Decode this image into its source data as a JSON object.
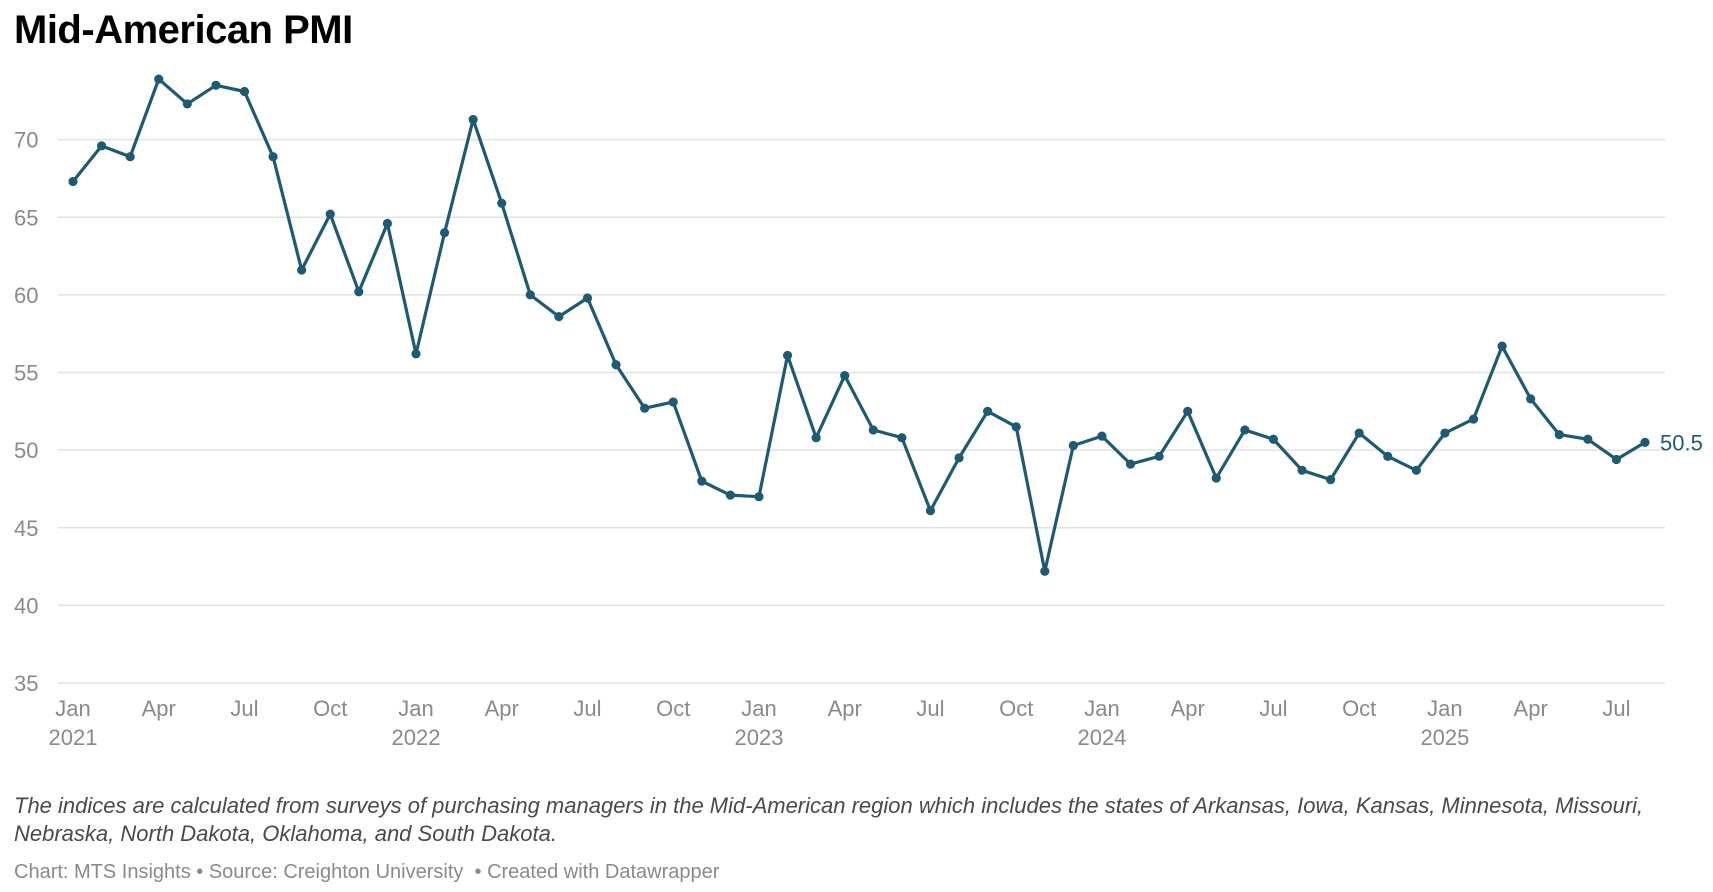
{
  "title": "Mid-American PMI",
  "notes": "The indices are calculated from surveys of purchasing managers in the Mid-American region which includes the states of Arkansas, Iowa, Kansas, Minnesota, Missouri, Nebraska, North Dakota, Oklahoma, and South Dakota.",
  "footer": {
    "chart_credit": "Chart: MTS Insights",
    "separator": " • ",
    "source": "Source: Creighton University",
    "separator2": "  • ",
    "created": "Created with Datawrapper"
  },
  "colors": {
    "line": "#1f5a73",
    "grid": "#e2e2e2",
    "tick_text": "#8a8a8a"
  },
  "chart_data": {
    "type": "line",
    "title": "Mid-American PMI",
    "xlabel": "",
    "ylabel": "",
    "ylim": [
      35,
      75
    ],
    "y_ticks": [
      35,
      40,
      45,
      50,
      55,
      60,
      65,
      70
    ],
    "grid": true,
    "x_ticks": [
      {
        "index": 0,
        "month": "Jan",
        "year": "2021"
      },
      {
        "index": 3,
        "month": "Apr",
        "year": ""
      },
      {
        "index": 6,
        "month": "Jul",
        "year": ""
      },
      {
        "index": 9,
        "month": "Oct",
        "year": ""
      },
      {
        "index": 12,
        "month": "Jan",
        "year": "2022"
      },
      {
        "index": 15,
        "month": "Apr",
        "year": ""
      },
      {
        "index": 18,
        "month": "Jul",
        "year": ""
      },
      {
        "index": 21,
        "month": "Oct",
        "year": ""
      },
      {
        "index": 24,
        "month": "Jan",
        "year": "2023"
      },
      {
        "index": 27,
        "month": "Apr",
        "year": ""
      },
      {
        "index": 30,
        "month": "Jul",
        "year": ""
      },
      {
        "index": 33,
        "month": "Oct",
        "year": ""
      },
      {
        "index": 36,
        "month": "Jan",
        "year": "2024"
      },
      {
        "index": 39,
        "month": "Apr",
        "year": ""
      },
      {
        "index": 42,
        "month": "Jul",
        "year": ""
      },
      {
        "index": 45,
        "month": "Oct",
        "year": ""
      },
      {
        "index": 48,
        "month": "Jan",
        "year": "2025"
      },
      {
        "index": 51,
        "month": "Apr",
        "year": ""
      },
      {
        "index": 54,
        "month": "Jul",
        "year": ""
      }
    ],
    "series": [
      {
        "start": "2021-01",
        "values": [
          67.3,
          69.6,
          68.9,
          73.9,
          72.3,
          73.5,
          73.1,
          68.9,
          61.6,
          65.2,
          60.2,
          64.6,
          56.2,
          64.0,
          71.3,
          65.9,
          60.0,
          58.6,
          59.8,
          55.5,
          52.7,
          53.1,
          48.0,
          47.1,
          47.0,
          56.1,
          50.8,
          54.8,
          51.3,
          50.8,
          46.1,
          49.5,
          52.5,
          51.5,
          42.2,
          50.3,
          50.9,
          49.1,
          49.6,
          52.5,
          48.2,
          51.3,
          50.7,
          48.7,
          48.1,
          51.1,
          49.6,
          48.7,
          51.1,
          52.0,
          56.7,
          53.3,
          51.0,
          50.7,
          49.4,
          50.5
        ]
      }
    ],
    "end_label": "50.5"
  }
}
